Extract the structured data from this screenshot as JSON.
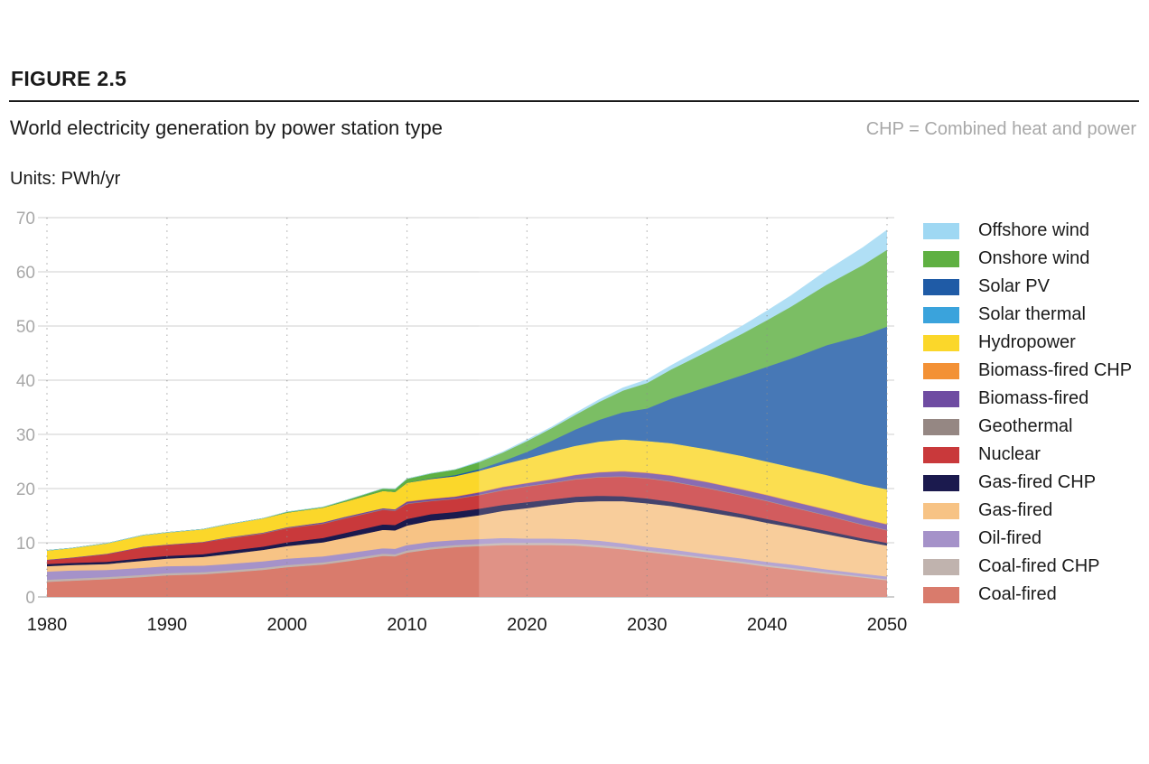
{
  "header": {
    "figure_label": "FIGURE 2.5",
    "title": "World electricity generation by power station type",
    "note": "CHP = Combined heat and power",
    "units": "Units: PWh/yr"
  },
  "chart_data": {
    "type": "area",
    "stacked": true,
    "forecast_start_year": 2016,
    "x": [
      1980,
      1982,
      1985,
      1988,
      1990,
      1993,
      1995,
      1998,
      2000,
      2003,
      2005,
      2008,
      2009,
      2010,
      2012,
      2014,
      2016,
      2018,
      2020,
      2022,
      2024,
      2026,
      2028,
      2030,
      2032,
      2035,
      2038,
      2040,
      2042,
      2045,
      2048,
      2050
    ],
    "ylim": [
      0,
      70
    ],
    "yticks": [
      0,
      10,
      20,
      30,
      40,
      50,
      60,
      70
    ],
    "xticks": [
      1980,
      1990,
      2000,
      2010,
      2020,
      2030,
      2040,
      2050
    ],
    "grid": true,
    "legend_position": "right",
    "series": [
      {
        "name": "Coal-fired",
        "color": "#d97b6c",
        "values": [
          2.8,
          3.0,
          3.3,
          3.7,
          4.0,
          4.2,
          4.5,
          5.0,
          5.5,
          6.0,
          6.6,
          7.6,
          7.5,
          8.2,
          8.8,
          9.2,
          9.4,
          9.6,
          9.6,
          9.6,
          9.5,
          9.2,
          8.8,
          8.3,
          7.8,
          7.0,
          6.2,
          5.6,
          5.1,
          4.3,
          3.6,
          3.1
        ]
      },
      {
        "name": "Coal-fired CHP",
        "color": "#c0b3ae",
        "values": [
          0.4,
          0.4,
          0.4,
          0.4,
          0.4,
          0.4,
          0.4,
          0.4,
          0.4,
          0.4,
          0.4,
          0.4,
          0.4,
          0.4,
          0.4,
          0.4,
          0.4,
          0.4,
          0.4,
          0.4,
          0.4,
          0.4,
          0.4,
          0.3,
          0.3,
          0.3,
          0.3,
          0.3,
          0.3,
          0.3,
          0.2,
          0.2
        ]
      },
      {
        "name": "Oil-fired",
        "color": "#a592c9",
        "values": [
          1.5,
          1.5,
          1.3,
          1.3,
          1.3,
          1.2,
          1.2,
          1.2,
          1.2,
          1.1,
          1.1,
          1.0,
          1.0,
          1.0,
          1.0,
          0.9,
          0.9,
          0.9,
          0.8,
          0.8,
          0.8,
          0.8,
          0.7,
          0.7,
          0.7,
          0.6,
          0.6,
          0.6,
          0.6,
          0.5,
          0.5,
          0.5
        ]
      },
      {
        "name": "Gas-fired",
        "color": "#f7c385",
        "values": [
          1.0,
          1.0,
          1.1,
          1.3,
          1.4,
          1.6,
          1.8,
          2.1,
          2.3,
          2.6,
          2.9,
          3.4,
          3.4,
          3.6,
          3.9,
          4.0,
          4.4,
          5.0,
          5.6,
          6.2,
          6.8,
          7.3,
          7.8,
          8.0,
          8.0,
          7.8,
          7.5,
          7.2,
          6.9,
          6.5,
          6.0,
          5.7
        ]
      },
      {
        "name": "Gas-fired CHP",
        "color": "#1b1a4e",
        "values": [
          0.4,
          0.4,
          0.4,
          0.5,
          0.5,
          0.5,
          0.6,
          0.6,
          0.7,
          0.8,
          0.9,
          1.0,
          1.0,
          1.2,
          1.2,
          1.2,
          1.2,
          1.1,
          1.1,
          1.0,
          1.0,
          1.0,
          0.9,
          0.9,
          0.8,
          0.8,
          0.7,
          0.7,
          0.6,
          0.6,
          0.5,
          0.5
        ]
      },
      {
        "name": "Nuclear",
        "color": "#c9393b",
        "values": [
          0.7,
          0.9,
          1.4,
          2.0,
          2.0,
          2.2,
          2.3,
          2.4,
          2.6,
          2.6,
          2.7,
          2.7,
          2.6,
          2.8,
          2.4,
          2.4,
          2.5,
          2.7,
          2.9,
          3.0,
          3.2,
          3.4,
          3.6,
          3.7,
          3.7,
          3.6,
          3.4,
          3.3,
          3.1,
          2.8,
          2.5,
          2.3
        ]
      },
      {
        "name": "Geothermal",
        "color": "#958783",
        "values": [
          0.0,
          0.0,
          0.0,
          0.0,
          0.0,
          0.0,
          0.1,
          0.1,
          0.1,
          0.1,
          0.1,
          0.1,
          0.1,
          0.1,
          0.1,
          0.1,
          0.1,
          0.1,
          0.1,
          0.1,
          0.1,
          0.1,
          0.1,
          0.1,
          0.1,
          0.1,
          0.1,
          0.1,
          0.1,
          0.1,
          0.1,
          0.1
        ]
      },
      {
        "name": "Biomass-fired",
        "color": "#6f4ca2",
        "values": [
          0.1,
          0.1,
          0.1,
          0.1,
          0.1,
          0.1,
          0.1,
          0.1,
          0.1,
          0.2,
          0.2,
          0.2,
          0.2,
          0.3,
          0.3,
          0.3,
          0.4,
          0.5,
          0.5,
          0.6,
          0.7,
          0.8,
          0.9,
          0.9,
          1.0,
          1.0,
          1.0,
          1.0,
          1.0,
          1.0,
          1.0,
          1.0
        ]
      },
      {
        "name": "Biomass-fired CHP",
        "color": "#f39135",
        "values": [
          0.0,
          0.0,
          0.0,
          0.0,
          0.0,
          0.0,
          0.0,
          0.0,
          0.0,
          0.0,
          0.0,
          0.0,
          0.0,
          0.1,
          0.1,
          0.1,
          0.1,
          0.1,
          0.1,
          0.1,
          0.1,
          0.1,
          0.1,
          0.1,
          0.1,
          0.1,
          0.1,
          0.1,
          0.1,
          0.1,
          0.1,
          0.1
        ]
      },
      {
        "name": "Hydropower",
        "color": "#fbd72a",
        "values": [
          1.7,
          1.7,
          1.9,
          2.1,
          2.2,
          2.3,
          2.4,
          2.6,
          2.7,
          2.7,
          2.8,
          3.2,
          3.2,
          3.4,
          3.6,
          3.7,
          3.9,
          4.1,
          4.5,
          5.0,
          5.3,
          5.6,
          5.8,
          5.8,
          5.9,
          6.0,
          6.1,
          6.1,
          6.2,
          6.3,
          6.3,
          6.4
        ]
      },
      {
        "name": "Solar thermal",
        "color": "#3aa3dc",
        "values": [
          0,
          0,
          0,
          0,
          0,
          0,
          0,
          0,
          0,
          0,
          0,
          0,
          0,
          0,
          0,
          0,
          0,
          0,
          0,
          0,
          0,
          0,
          0,
          0,
          0,
          0,
          0,
          0,
          0,
          0,
          0,
          0
        ]
      },
      {
        "name": "Solar PV",
        "color": "#1f5ba6",
        "values": [
          0.0,
          0.0,
          0.0,
          0.0,
          0.0,
          0.0,
          0.0,
          0.0,
          0.0,
          0.0,
          0.0,
          0.0,
          0.0,
          0.0,
          0.1,
          0.2,
          0.3,
          0.6,
          1.2,
          2.0,
          3.0,
          4.0,
          5.0,
          6.0,
          8.2,
          11.5,
          15.0,
          17.5,
          20.0,
          24.0,
          27.5,
          30.0
        ]
      },
      {
        "name": "Onshore wind",
        "color": "#5fb042",
        "values": [
          0.0,
          0.0,
          0.0,
          0.0,
          0.0,
          0.0,
          0.0,
          0.0,
          0.1,
          0.1,
          0.2,
          0.4,
          0.5,
          0.7,
          0.9,
          1.0,
          1.3,
          1.6,
          2.0,
          2.3,
          2.7,
          3.3,
          4.0,
          4.7,
          5.4,
          6.5,
          7.7,
          8.6,
          9.6,
          11.2,
          13.0,
          14.2
        ]
      },
      {
        "name": "Offshore wind",
        "color": "#9fd8f3",
        "values": [
          0,
          0,
          0,
          0,
          0,
          0,
          0,
          0,
          0,
          0,
          0,
          0,
          0,
          0,
          0,
          0,
          0.1,
          0.1,
          0.2,
          0.2,
          0.3,
          0.4,
          0.5,
          0.6,
          0.7,
          1.0,
          1.4,
          1.7,
          2.0,
          2.6,
          3.2,
          3.6
        ]
      }
    ]
  }
}
